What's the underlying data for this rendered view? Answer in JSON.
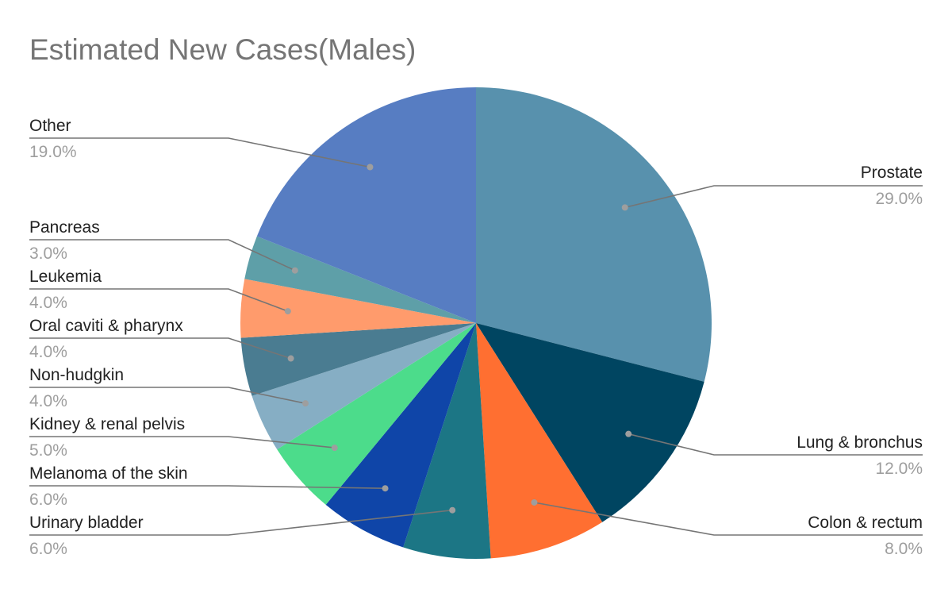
{
  "chart_data": {
    "type": "pie",
    "title": "Estimated New Cases(Males)",
    "slices": [
      {
        "label": "Prostate",
        "value": 29.0,
        "display": "29.0%",
        "color": "#5891AD"
      },
      {
        "label": "Lung & bronchus",
        "value": 12.0,
        "display": "12.0%",
        "color": "#004561"
      },
      {
        "label": "Colon & rectum",
        "value": 8.0,
        "display": "8.0%",
        "color": "#FF6F31"
      },
      {
        "label": "Urinary bladder",
        "value": 6.0,
        "display": "6.0%",
        "color": "#1C7685"
      },
      {
        "label": "Melanoma of the skin",
        "value": 6.0,
        "display": "6.0%",
        "color": "#0F45A8"
      },
      {
        "label": "Kidney & renal pelvis",
        "value": 5.0,
        "display": "5.0%",
        "color": "#4CDC8B"
      },
      {
        "label": "Non-hudgkin",
        "value": 4.0,
        "display": "4.0%",
        "color": "#86AEC4"
      },
      {
        "label": "Oral caviti & pharynx",
        "value": 4.0,
        "display": "4.0%",
        "color": "#4A7C91"
      },
      {
        "label": "Leukemia",
        "value": 4.0,
        "display": "4.0%",
        "color": "#FF9B6C"
      },
      {
        "label": "Pancreas",
        "value": 3.0,
        "display": "3.0%",
        "color": "#5E9FA8"
      },
      {
        "label": "Other",
        "value": 19.0,
        "display": "19.0%",
        "color": "#577DC2"
      }
    ],
    "start_angle_deg": 0,
    "direction": "clockwise",
    "legend": "none (callout labels)"
  }
}
